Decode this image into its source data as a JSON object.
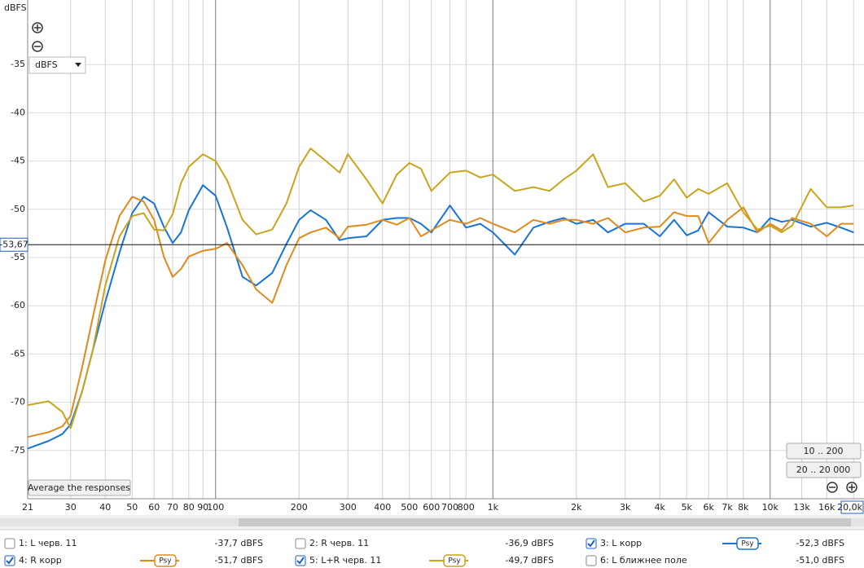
{
  "chart_data": {
    "type": "line",
    "y_axis_label": "dBFS",
    "unit_selector": "dBFS",
    "log_x": true,
    "grid": true,
    "xlim": [
      21,
      21800
    ],
    "ylim": [
      -80,
      -30
    ],
    "xticks": [
      21,
      30,
      40,
      50,
      60,
      70,
      80,
      90,
      100,
      200,
      300,
      400,
      500,
      600,
      700,
      800,
      {
        "value": 1000,
        "label": "1k"
      },
      {
        "value": 2000,
        "label": "2k"
      },
      {
        "value": 3000,
        "label": "3k"
      },
      {
        "value": 4000,
        "label": "4k"
      },
      {
        "value": 5000,
        "label": "5k"
      },
      {
        "value": 6000,
        "label": "6k"
      },
      {
        "value": 7000,
        "label": "7k"
      },
      {
        "value": 8000,
        "label": "8k"
      },
      {
        "value": 10000,
        "label": "10k"
      },
      {
        "value": 13000,
        "label": "13k"
      },
      {
        "value": 16000,
        "label": "16k"
      },
      {
        "value": 20000,
        "label": "20,0k"
      }
    ],
    "yticks": [
      -35,
      -40,
      -45,
      -50,
      -55,
      -60,
      -65,
      -70,
      -75
    ],
    "cursor": {
      "value": -53.67,
      "label": "-53,67"
    },
    "x": [
      21,
      25,
      28,
      30,
      33,
      36,
      40,
      45,
      50,
      55,
      60,
      65,
      70,
      75,
      80,
      90,
      100,
      110,
      125,
      140,
      160,
      180,
      200,
      220,
      250,
      280,
      300,
      350,
      400,
      450,
      500,
      550,
      600,
      700,
      800,
      900,
      1000,
      1200,
      1400,
      1600,
      1800,
      2000,
      2300,
      2600,
      3000,
      3500,
      4000,
      4500,
      5000,
      5500,
      6000,
      7000,
      8000,
      9000,
      10000,
      11000,
      12000,
      14000,
      16000,
      18000,
      20000
    ],
    "smoothing_label": "Psy",
    "series": [
      {
        "name": "1: L черв. 11",
        "color": "#b0262b",
        "level": "-37,7 dBFS",
        "visible": false
      },
      {
        "name": "2: R черв. 11",
        "color": "#2f8a3a",
        "level": "-36,9 dBFS",
        "visible": false
      },
      {
        "name": "3: L корр",
        "color": "#1874d9",
        "level": "-52,3 dBFS",
        "visible": true,
        "values": [
          -74.8,
          -74.0,
          -73.3,
          -72.3,
          -68.9,
          -64.7,
          -59.6,
          -54.5,
          -50.4,
          -48.7,
          -49.4,
          -51.8,
          -53.5,
          -52.4,
          -50.1,
          -47.5,
          -48.6,
          -51.9,
          -57.0,
          -57.9,
          -56.6,
          -53.6,
          -51.1,
          -50.1,
          -51.1,
          -53.2,
          -53.0,
          -52.8,
          -51.1,
          -50.9,
          -50.9,
          -51.5,
          -52.4,
          -49.6,
          -51.9,
          -51.5,
          -52.4,
          -54.7,
          -51.9,
          -51.3,
          -50.9,
          -51.5,
          -51.1,
          -52.4,
          -51.5,
          -51.5,
          -52.8,
          -51.1,
          -52.7,
          -52.2,
          -50.3,
          -51.8,
          -51.9,
          -52.4,
          -50.9,
          -51.3,
          -51.1,
          -51.8,
          -51.4,
          -51.9,
          -52.4
        ]
      },
      {
        "name": "4: R корр",
        "color": "#e08a1e",
        "level": "-51,7 dBFS",
        "visible": true,
        "values": [
          -73.6,
          -73.1,
          -72.5,
          -71.4,
          -66.4,
          -61.3,
          -55.3,
          -50.7,
          -48.7,
          -49.2,
          -51.1,
          -54.9,
          -57.0,
          -56.2,
          -54.9,
          -54.3,
          -54.1,
          -53.5,
          -55.8,
          -58.3,
          -59.7,
          -55.8,
          -53.0,
          -52.4,
          -51.9,
          -53.0,
          -51.8,
          -51.6,
          -51.1,
          -51.6,
          -50.9,
          -52.8,
          -52.2,
          -51.1,
          -51.5,
          -50.9,
          -51.5,
          -52.4,
          -51.1,
          -51.5,
          -51.1,
          -51.1,
          -51.5,
          -50.9,
          -52.4,
          -51.9,
          -51.8,
          -50.3,
          -50.7,
          -50.7,
          -53.5,
          -51.1,
          -49.8,
          -52.4,
          -51.5,
          -52.2,
          -50.9,
          -51.5,
          -52.8,
          -51.5,
          -51.5
        ]
      },
      {
        "name": "5: L+R черв. 11",
        "color": "#c9a41c",
        "level": "-49,7 dBFS",
        "visible": true,
        "values": [
          -70.3,
          -69.9,
          -71.0,
          -72.7,
          -68.9,
          -64.7,
          -57.9,
          -52.8,
          -50.7,
          -50.4,
          -52.1,
          -52.2,
          -50.5,
          -47.3,
          -45.6,
          -44.3,
          -45.0,
          -47.0,
          -51.1,
          -52.6,
          -52.1,
          -49.4,
          -45.6,
          -43.7,
          -45.0,
          -46.2,
          -44.3,
          -46.9,
          -49.4,
          -46.4,
          -45.2,
          -45.8,
          -48.1,
          -46.2,
          -46.0,
          -46.7,
          -46.4,
          -48.1,
          -47.7,
          -48.1,
          -46.9,
          -46.0,
          -44.3,
          -47.7,
          -47.3,
          -49.2,
          -48.6,
          -46.9,
          -48.8,
          -47.9,
          -48.4,
          -47.3,
          -50.3,
          -52.1,
          -51.7,
          -52.4,
          -51.7,
          -47.9,
          -49.8,
          -49.8,
          -49.6
        ]
      },
      {
        "name": "6: L ближнее поле",
        "color": "#2a9d8f",
        "level": "-51,0 dBFS",
        "visible": false
      }
    ]
  },
  "controls": {
    "average_button": "Average the responses",
    "range_buttons": [
      "10 .. 200",
      "20 .. 20 000"
    ]
  }
}
